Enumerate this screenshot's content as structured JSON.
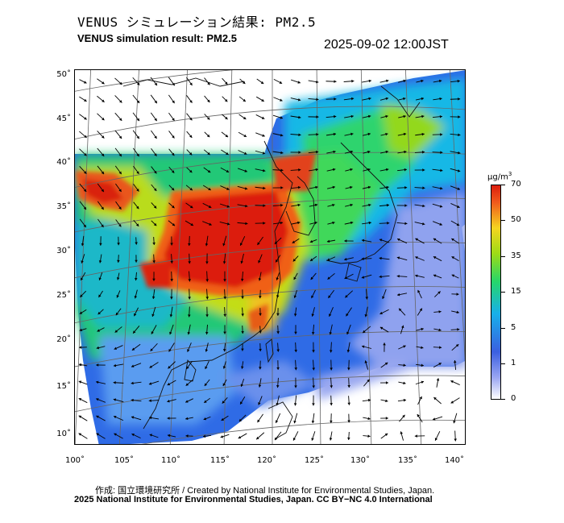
{
  "header": {
    "title_jp": "VENUS シミュレーション結果: PM2.5",
    "title_en": "VENUS simulation result: PM2.5",
    "timestamp": "2025-09-02 12:00JST"
  },
  "map": {
    "lat_labels": [
      "50˚",
      "45˚",
      "40˚",
      "35˚",
      "30˚",
      "25˚",
      "20˚",
      "15˚",
      "10˚"
    ],
    "lon_labels": [
      "100˚",
      "105˚",
      "110˚",
      "115˚",
      "120˚",
      "125˚",
      "130˚",
      "135˚",
      "140˚"
    ]
  },
  "colorbar": {
    "unit": "μg/m",
    "unit_sup": "3",
    "labels": [
      "70",
      "50",
      "35",
      "15",
      "5",
      "1",
      "0"
    ],
    "colors": [
      "#ffffff",
      "#9aa6f2",
      "#3b5fe0",
      "#17b0ea",
      "#26d66a",
      "#9ddc16",
      "#f5d520",
      "#f05a1c",
      "#dc1e0e"
    ]
  },
  "footer": {
    "credit_line1": "作成: 国立環境研究所 / Created by National Institute for Environmental Studies, Japan.",
    "credit_line2": "2025 National Institute for Environmental Studies, Japan. CC BY−NC 4.0 International"
  }
}
